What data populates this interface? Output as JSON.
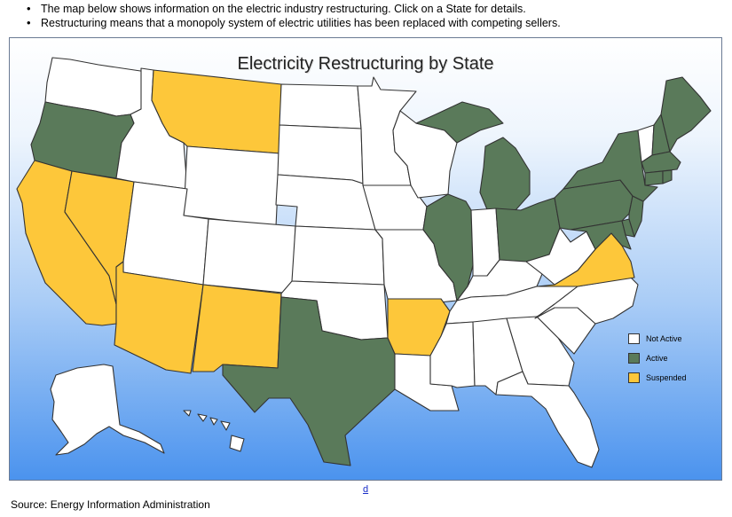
{
  "bullets": [
    "The map below shows information on the electric industry restructuring. Click on a State for details.",
    "Restructuring means that a monopoly system of electric utilities has been replaced with competing sellers."
  ],
  "map": {
    "title": "Electricity Restructuring by State",
    "legend": [
      {
        "status": "not_active",
        "label": "Not Active"
      },
      {
        "status": "active",
        "label": "Active"
      },
      {
        "status": "suspended",
        "label": "Suspended"
      }
    ],
    "colors": {
      "not_active": "#ffffff",
      "active": "#5a7a5a",
      "suspended": "#fdc73a"
    },
    "states": [
      {
        "abbr": "WA",
        "status": "not_active"
      },
      {
        "abbr": "OR",
        "status": "active"
      },
      {
        "abbr": "CA",
        "status": "suspended"
      },
      {
        "abbr": "NV",
        "status": "suspended"
      },
      {
        "abbr": "ID",
        "status": "not_active"
      },
      {
        "abbr": "MT",
        "status": "suspended"
      },
      {
        "abbr": "WY",
        "status": "not_active"
      },
      {
        "abbr": "UT",
        "status": "not_active"
      },
      {
        "abbr": "AZ",
        "status": "suspended"
      },
      {
        "abbr": "CO",
        "status": "not_active"
      },
      {
        "abbr": "NM",
        "status": "suspended"
      },
      {
        "abbr": "ND",
        "status": "not_active"
      },
      {
        "abbr": "SD",
        "status": "not_active"
      },
      {
        "abbr": "NE",
        "status": "not_active"
      },
      {
        "abbr": "KS",
        "status": "not_active"
      },
      {
        "abbr": "OK",
        "status": "not_active"
      },
      {
        "abbr": "TX",
        "status": "active"
      },
      {
        "abbr": "MN",
        "status": "not_active"
      },
      {
        "abbr": "IA",
        "status": "not_active"
      },
      {
        "abbr": "MO",
        "status": "not_active"
      },
      {
        "abbr": "AR",
        "status": "suspended"
      },
      {
        "abbr": "LA",
        "status": "not_active"
      },
      {
        "abbr": "WI",
        "status": "not_active"
      },
      {
        "abbr": "IL",
        "status": "active"
      },
      {
        "abbr": "MI",
        "status": "active"
      },
      {
        "abbr": "IN",
        "status": "not_active"
      },
      {
        "abbr": "OH",
        "status": "active"
      },
      {
        "abbr": "KY",
        "status": "not_active"
      },
      {
        "abbr": "TN",
        "status": "not_active"
      },
      {
        "abbr": "MS",
        "status": "not_active"
      },
      {
        "abbr": "AL",
        "status": "not_active"
      },
      {
        "abbr": "GA",
        "status": "not_active"
      },
      {
        "abbr": "FL",
        "status": "not_active"
      },
      {
        "abbr": "SC",
        "status": "not_active"
      },
      {
        "abbr": "NC",
        "status": "not_active"
      },
      {
        "abbr": "VA",
        "status": "suspended"
      },
      {
        "abbr": "WV",
        "status": "not_active"
      },
      {
        "abbr": "MD",
        "status": "active"
      },
      {
        "abbr": "DE",
        "status": "active"
      },
      {
        "abbr": "PA",
        "status": "active"
      },
      {
        "abbr": "NJ",
        "status": "active"
      },
      {
        "abbr": "NY",
        "status": "active"
      },
      {
        "abbr": "CT",
        "status": "active"
      },
      {
        "abbr": "RI",
        "status": "active"
      },
      {
        "abbr": "MA",
        "status": "active"
      },
      {
        "abbr": "VT",
        "status": "not_active"
      },
      {
        "abbr": "NH",
        "status": "active"
      },
      {
        "abbr": "ME",
        "status": "active"
      },
      {
        "abbr": "AK",
        "status": "not_active"
      },
      {
        "abbr": "HI",
        "status": "not_active"
      }
    ]
  },
  "link_text": "d",
  "source": "Source: Energy Information Administration"
}
